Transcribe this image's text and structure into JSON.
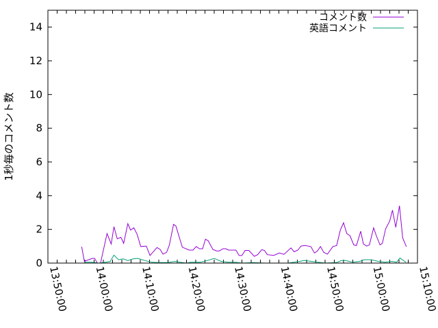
{
  "chart_data": {
    "type": "line",
    "title": "",
    "xlabel": "",
    "ylabel": "1秒毎のコメント数",
    "xlim": [
      "13:50:00",
      "15:10:00"
    ],
    "ylim": [
      0,
      15
    ],
    "x_ticks": [
      "13:50:00",
      "14:00:00",
      "14:10:00",
      "14:20:00",
      "14:30:00",
      "14:40:00",
      "14:50:00",
      "15:00:00",
      "15:10:00"
    ],
    "y_ticks": [
      "0",
      "2",
      "4",
      "6",
      "8",
      "10",
      "12",
      "14"
    ],
    "grid": false,
    "legend_position": "top-right",
    "series": [
      {
        "name": "コメント数",
        "color": "#9400d3",
        "points": [
          [
            "13:57:18",
            0.97
          ],
          [
            "13:57:54",
            0.1
          ],
          [
            "13:59:36",
            0.28
          ],
          [
            "14:00:06",
            0.28
          ],
          [
            "14:00:42",
            0
          ],
          [
            "14:01:24",
            0
          ],
          [
            "14:02:48",
            1.75
          ],
          [
            "14:03:42",
            1.13
          ],
          [
            "14:04:18",
            2.16
          ],
          [
            "14:05:00",
            1.44
          ],
          [
            "14:05:48",
            1.53
          ],
          [
            "14:06:24",
            1.17
          ],
          [
            "14:07:18",
            2.34
          ],
          [
            "14:07:54",
            1.96
          ],
          [
            "14:08:36",
            2.09
          ],
          [
            "14:09:18",
            1.71
          ],
          [
            "14:10:06",
            0.98
          ],
          [
            "14:11:18",
            1.01
          ],
          [
            "14:12:06",
            0.45
          ],
          [
            "14:13:36",
            0.92
          ],
          [
            "14:14:18",
            0.81
          ],
          [
            "14:14:54",
            0.53
          ],
          [
            "14:15:42",
            0.64
          ],
          [
            "14:16:18",
            1.08
          ],
          [
            "14:17:12",
            2.3
          ],
          [
            "14:17:42",
            2.2
          ],
          [
            "14:19:06",
            0.94
          ],
          [
            "14:20:36",
            0.77
          ],
          [
            "14:21:24",
            0.77
          ],
          [
            "14:22:06",
            0.98
          ],
          [
            "14:22:48",
            0.85
          ],
          [
            "14:23:30",
            0.85
          ],
          [
            "14:24:06",
            1.42
          ],
          [
            "14:24:42",
            1.32
          ],
          [
            "14:25:42",
            0.81
          ],
          [
            "14:26:30",
            0.72
          ],
          [
            "14:27:06",
            0.72
          ],
          [
            "14:27:54",
            0.85
          ],
          [
            "14:28:30",
            0.85
          ],
          [
            "14:29:06",
            0.77
          ],
          [
            "14:30:42",
            0.77
          ],
          [
            "14:31:24",
            0.45
          ],
          [
            "14:32:00",
            0.45
          ],
          [
            "14:32:42",
            0.75
          ],
          [
            "14:33:30",
            0.75
          ],
          [
            "14:34:42",
            0.4
          ],
          [
            "14:35:24",
            0.5
          ],
          [
            "14:36:18",
            0.8
          ],
          [
            "14:36:54",
            0.74
          ],
          [
            "14:37:30",
            0.5
          ],
          [
            "14:38:54",
            0.46
          ],
          [
            "14:40:06",
            0.6
          ],
          [
            "14:41:06",
            0.52
          ],
          [
            "14:42:36",
            0.9
          ],
          [
            "14:43:18",
            0.67
          ],
          [
            "14:44:06",
            0.77
          ],
          [
            "14:44:48",
            1.01
          ],
          [
            "14:45:36",
            1.04
          ],
          [
            "14:46:54",
            0.98
          ],
          [
            "14:47:42",
            0.6
          ],
          [
            "14:48:18",
            0.71
          ],
          [
            "14:49:00",
            0.98
          ],
          [
            "14:49:42",
            0.64
          ],
          [
            "14:50:30",
            0.53
          ],
          [
            "14:51:42",
            0.98
          ],
          [
            "14:52:30",
            1.04
          ],
          [
            "14:53:18",
            1.96
          ],
          [
            "14:54:00",
            2.39
          ],
          [
            "14:54:42",
            1.75
          ],
          [
            "14:55:24",
            1.62
          ],
          [
            "14:56:12",
            1.08
          ],
          [
            "14:56:48",
            1.04
          ],
          [
            "14:57:42",
            1.89
          ],
          [
            "14:58:18",
            1.13
          ],
          [
            "14:59:00",
            1.01
          ],
          [
            "14:59:36",
            1.08
          ],
          [
            "15:00:30",
            2.09
          ],
          [
            "15:01:06",
            1.62
          ],
          [
            "15:01:54",
            1.08
          ],
          [
            "15:02:24",
            1.17
          ],
          [
            "15:03:06",
            2.02
          ],
          [
            "15:04:00",
            2.5
          ],
          [
            "15:04:36",
            3.14
          ],
          [
            "15:05:18",
            2.12
          ],
          [
            "15:06:06",
            3.4
          ],
          [
            "15:06:48",
            1.49
          ],
          [
            "15:07:36",
            0.97
          ]
        ]
      },
      {
        "name": "英語コメント",
        "color": "#009e73",
        "points": [
          [
            "13:58:00",
            0.05
          ],
          [
            "13:59:30",
            0.05
          ],
          [
            "14:01:00",
            0
          ],
          [
            "14:02:30",
            0.05
          ],
          [
            "14:03:30",
            0.1
          ],
          [
            "14:04:18",
            0.47
          ],
          [
            "14:05:18",
            0.2
          ],
          [
            "14:06:18",
            0.25
          ],
          [
            "14:07:18",
            0.15
          ],
          [
            "14:08:30",
            0.25
          ],
          [
            "14:09:30",
            0.28
          ],
          [
            "14:11:00",
            0.15
          ],
          [
            "14:12:30",
            0.05
          ],
          [
            "14:14:00",
            0.03
          ],
          [
            "14:16:00",
            0.03
          ],
          [
            "14:17:30",
            0.1
          ],
          [
            "14:18:30",
            0.05
          ],
          [
            "14:20:00",
            0
          ],
          [
            "14:21:00",
            0.05
          ],
          [
            "14:23:00",
            0.05
          ],
          [
            "14:24:30",
            0.15
          ],
          [
            "14:26:00",
            0.28
          ],
          [
            "14:27:30",
            0.1
          ],
          [
            "14:29:00",
            0.05
          ],
          [
            "14:30:30",
            0.05
          ],
          [
            "14:32:00",
            0
          ],
          [
            "14:34:30",
            0.03
          ],
          [
            "14:37:00",
            0
          ],
          [
            "14:42:00",
            0
          ],
          [
            "14:44:30",
            0.1
          ],
          [
            "14:45:30",
            0.16
          ],
          [
            "14:47:00",
            0.1
          ],
          [
            "14:48:30",
            0.05
          ],
          [
            "14:50:00",
            0
          ],
          [
            "14:52:30",
            0.03
          ],
          [
            "14:53:30",
            0.15
          ],
          [
            "14:54:30",
            0.15
          ],
          [
            "14:56:00",
            0.05
          ],
          [
            "14:57:30",
            0.1
          ],
          [
            "14:58:30",
            0.2
          ],
          [
            "15:00:00",
            0.2
          ],
          [
            "15:01:30",
            0.1
          ],
          [
            "15:03:00",
            0.05
          ],
          [
            "15:04:30",
            0.1
          ],
          [
            "15:05:30",
            0.05
          ],
          [
            "15:06:12",
            0.3
          ],
          [
            "15:07:30",
            0.05
          ]
        ]
      }
    ]
  }
}
